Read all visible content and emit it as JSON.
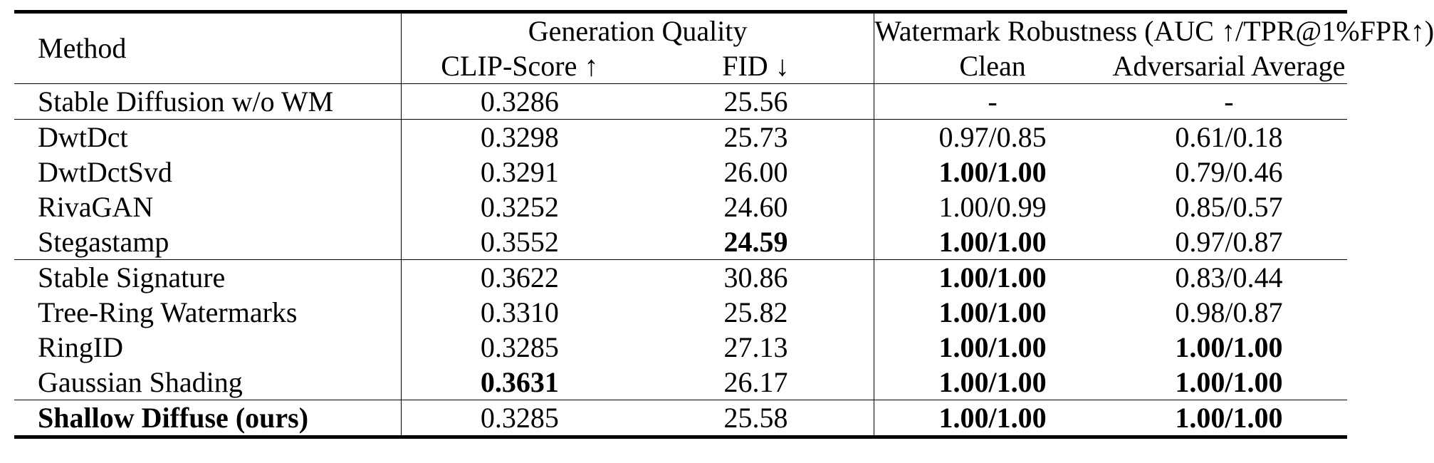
{
  "header": {
    "method": "Method",
    "group_quality": "Generation Quality",
    "group_robustness": "Watermark Robustness (AUC ↑/TPR@1%FPR↑)",
    "clip_score": "CLIP-Score ↑",
    "fid": "FID ↓",
    "clean": "Clean",
    "adv_avg": "Adversarial Average"
  },
  "rows": [
    {
      "method": "Stable Diffusion w/o WM",
      "clip": "0.3286",
      "fid": "25.56",
      "clean": "-",
      "adv": "-"
    },
    {
      "method": "DwtDct",
      "clip": "0.3298",
      "fid": "25.73",
      "clean": "0.97/0.85",
      "adv": "0.61/0.18"
    },
    {
      "method": "DwtDctSvd",
      "clip": "0.3291",
      "fid": "26.00",
      "clean": "1.00/1.00",
      "adv": "0.79/0.46"
    },
    {
      "method": "RivaGAN",
      "clip": "0.3252",
      "fid": "24.60",
      "clean": "1.00/0.99",
      "adv": "0.85/0.57"
    },
    {
      "method": "Stegastamp",
      "clip": "0.3552",
      "fid": "24.59",
      "clean": "1.00/1.00",
      "adv": "0.97/0.87"
    },
    {
      "method": "Stable Signature",
      "clip": "0.3622",
      "fid": "30.86",
      "clean": "1.00/1.00",
      "adv": "0.83/0.44"
    },
    {
      "method": "Tree-Ring Watermarks",
      "clip": "0.3310",
      "fid": "25.82",
      "clean": "1.00/1.00",
      "adv": "0.98/0.87"
    },
    {
      "method": "RingID",
      "clip": "0.3285",
      "fid": "27.13",
      "clean": "1.00/1.00",
      "adv": "1.00/1.00"
    },
    {
      "method": "Gaussian Shading",
      "clip": "0.3631",
      "fid": "26.17",
      "clean": "1.00/1.00",
      "adv": "1.00/1.00"
    },
    {
      "method": "Shallow Diffuse (ours)",
      "clip": "0.3285",
      "fid": "25.58",
      "clean": "1.00/1.00",
      "adv": "1.00/1.00"
    }
  ]
}
